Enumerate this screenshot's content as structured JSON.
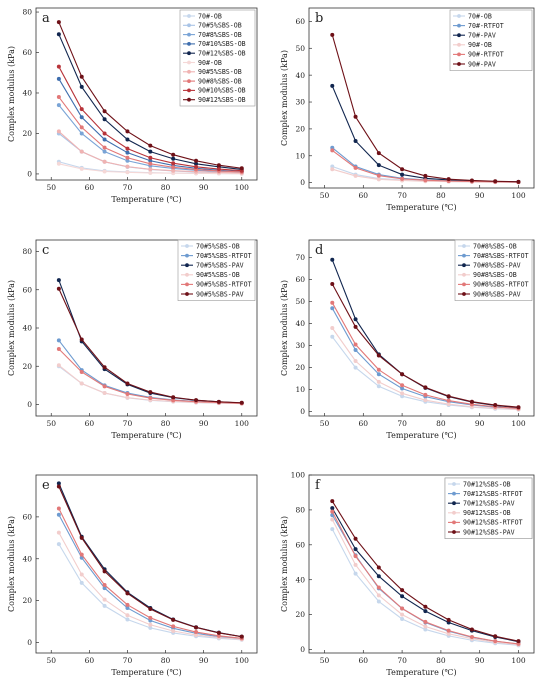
{
  "colors": {
    "A": "#c6d7ec",
    "B": "#6e9bd0",
    "C": "#11264f",
    "D": "#f2cdcc",
    "E": "#e27878",
    "F": "#6e1017",
    "a1": "#c6d7ec",
    "a2": "#a9c4e6",
    "a3": "#7aa4d6",
    "a4": "#3f6eae",
    "a5": "#11264f",
    "a6": "#f5d8d7",
    "a7": "#f0b3b2",
    "a8": "#e27878",
    "a9": "#b8343a",
    "a10": "#6e1017"
  },
  "chart_data": [
    {
      "type": "line",
      "panel": "a",
      "xlabel": "Temperature (℃)",
      "ylabel": "Complex modulus (kPa)",
      "xlim": [
        46,
        104
      ],
      "ylim": [
        -3,
        82
      ],
      "xticks": [
        50,
        60,
        70,
        80,
        90,
        100
      ],
      "yticks": [
        0,
        20,
        40,
        60,
        80
      ],
      "x": [
        52,
        58,
        64,
        70,
        76,
        82,
        88,
        94,
        100
      ],
      "series": [
        {
          "name": "70#-OB",
          "color": "a1",
          "values": [
            6,
            3,
            1.5,
            1,
            0.6,
            0.4,
            0.3,
            0.2,
            0.1
          ]
        },
        {
          "name": "70#5%SBS-OB",
          "color": "a2",
          "values": [
            20,
            11,
            6,
            3.5,
            2.2,
            1.5,
            1,
            0.7,
            0.5
          ]
        },
        {
          "name": "70#8%SBS-OB",
          "color": "a3",
          "values": [
            34,
            20,
            11,
            6.5,
            4,
            2.7,
            1.8,
            1.2,
            0.8
          ]
        },
        {
          "name": "70#10%SBS-OB",
          "color": "a4",
          "values": [
            47,
            28,
            17,
            10.5,
            6.5,
            4.2,
            2.8,
            1.8,
            1.2
          ]
        },
        {
          "name": "70#12%SBS-OB",
          "color": "a5",
          "values": [
            69,
            43,
            27,
            17,
            11,
            7.5,
            5,
            3.5,
            2.2
          ]
        },
        {
          "name": "90#-OB",
          "color": "a6",
          "values": [
            5,
            2.5,
            1.2,
            0.8,
            0.5,
            0.4,
            0.3,
            0.2,
            0.1
          ]
        },
        {
          "name": "90#5%SBS-OB",
          "color": "a7",
          "values": [
            21,
            11,
            6,
            3.6,
            2.3,
            1.6,
            1.1,
            0.8,
            0.5
          ]
        },
        {
          "name": "90#8%SBS-OB",
          "color": "a8",
          "values": [
            38,
            23,
            13,
            8,
            5,
            3.3,
            2.2,
            1.5,
            1
          ]
        },
        {
          "name": "90#10%SBS-OB",
          "color": "a9",
          "values": [
            53,
            32,
            20,
            12.5,
            8,
            5.3,
            3.5,
            2.4,
            1.6
          ]
        },
        {
          "name": "90#12%SBS-OB",
          "color": "a10",
          "values": [
            75,
            48,
            31,
            21,
            14,
            9.5,
            6.5,
            4.3,
            2.8
          ]
        }
      ]
    },
    {
      "type": "line",
      "panel": "b",
      "xlabel": "Temperature (℃)",
      "ylabel": "Complex modulus (kPa)",
      "xlim": [
        46,
        104
      ],
      "ylim": [
        -2,
        65
      ],
      "xticks": [
        50,
        60,
        70,
        80,
        90,
        100
      ],
      "yticks": [
        0,
        10,
        20,
        30,
        40,
        50,
        60
      ],
      "x": [
        52,
        58,
        64,
        70,
        76,
        82,
        88,
        94,
        100
      ],
      "series": [
        {
          "name": "70#-OB",
          "color": "A",
          "values": [
            6,
            3,
            1.5,
            1,
            0.6,
            0.4,
            0.3,
            0.2,
            0.1
          ]
        },
        {
          "name": "70#-RTFOT",
          "color": "B",
          "values": [
            13,
            6,
            3,
            1.6,
            1,
            0.6,
            0.4,
            0.3,
            0.2
          ]
        },
        {
          "name": "70#-PAV",
          "color": "C",
          "values": [
            36,
            15.5,
            6.5,
            3,
            1.6,
            1,
            0.6,
            0.4,
            0.3
          ]
        },
        {
          "name": "90#-OB",
          "color": "D",
          "values": [
            5,
            2.5,
            1.2,
            0.8,
            0.5,
            0.4,
            0.3,
            0.2,
            0.1
          ]
        },
        {
          "name": "90#-RTFOT",
          "color": "E",
          "values": [
            12,
            5.5,
            2.6,
            1.4,
            0.9,
            0.6,
            0.4,
            0.3,
            0.2
          ]
        },
        {
          "name": "90#-PAV",
          "color": "F",
          "values": [
            55,
            24.5,
            11,
            5,
            2.5,
            1.3,
            0.8,
            0.5,
            0.3
          ]
        }
      ]
    },
    {
      "type": "line",
      "panel": "c",
      "xlabel": "Temperature (℃)",
      "ylabel": "Complex modulus (kPa)",
      "xlim": [
        46,
        104
      ],
      "ylim": [
        -6,
        86
      ],
      "xticks": [
        50,
        60,
        70,
        80,
        90,
        100
      ],
      "yticks": [
        0,
        20,
        40,
        60,
        80
      ],
      "x": [
        52,
        58,
        64,
        70,
        76,
        82,
        88,
        94,
        100
      ],
      "series": [
        {
          "name": "70#5%SBS-OB",
          "color": "A",
          "values": [
            20,
            11,
            6,
            3.5,
            2.2,
            1.5,
            1,
            0.7,
            0.5
          ]
        },
        {
          "name": "70#5%SBS-RTFOT",
          "color": "B",
          "values": [
            33.5,
            18,
            10,
            6,
            3.7,
            2.4,
            1.6,
            1.1,
            0.7
          ]
        },
        {
          "name": "70#5%SBS-PAV",
          "color": "C",
          "values": [
            65,
            33,
            18.5,
            10.5,
            6,
            3.6,
            2.2,
            1.4,
            0.8
          ]
        },
        {
          "name": "90#5%SBS-OB",
          "color": "D",
          "values": [
            20.5,
            11,
            6,
            3.6,
            2.3,
            1.6,
            1.1,
            0.8,
            0.5
          ]
        },
        {
          "name": "90#5%SBS-RTFOT",
          "color": "E",
          "values": [
            29,
            17,
            9.5,
            5.5,
            3.4,
            2.2,
            1.5,
            1,
            0.6
          ]
        },
        {
          "name": "90#5%SBS-PAV",
          "color": "F",
          "values": [
            60.5,
            34,
            19.5,
            11,
            6.5,
            3.8,
            2.3,
            1.4,
            0.9
          ]
        }
      ]
    },
    {
      "type": "line",
      "panel": "d",
      "xlabel": "Temperature (℃)",
      "ylabel": "Complex modulus (kPa)",
      "xlim": [
        46,
        104
      ],
      "ylim": [
        -2,
        78
      ],
      "xticks": [
        50,
        60,
        70,
        80,
        90,
        100
      ],
      "yticks": [
        0,
        10,
        20,
        30,
        40,
        50,
        60,
        70
      ],
      "x": [
        52,
        58,
        64,
        70,
        76,
        82,
        88,
        94,
        100
      ],
      "series": [
        {
          "name": "70#8%SBS-OB",
          "color": "A",
          "values": [
            34,
            20,
            11.5,
            7,
            4.5,
            3,
            2,
            1.3,
            0.9
          ]
        },
        {
          "name": "70#8%SBS-RTFOT",
          "color": "B",
          "values": [
            47,
            28,
            17,
            10.5,
            6.8,
            4.5,
            3,
            2,
            1.3
          ]
        },
        {
          "name": "70#8%SBS-PAV",
          "color": "C",
          "values": [
            69,
            42,
            26,
            17,
            10.8,
            6.8,
            4.3,
            2.8,
            1.7
          ]
        },
        {
          "name": "90#8%SBS-OB",
          "color": "D",
          "values": [
            38,
            23,
            13.5,
            8.3,
            5.2,
            3.4,
            2.2,
            1.5,
            1
          ]
        },
        {
          "name": "90#8%SBS-RTFOT",
          "color": "E",
          "values": [
            49.5,
            30.5,
            19,
            12,
            7.6,
            5,
            3.3,
            2.2,
            1.4
          ]
        },
        {
          "name": "90#8%SBS-PAV",
          "color": "F",
          "values": [
            58,
            38.5,
            25.5,
            17,
            11,
            7,
            4.5,
            3,
            2
          ]
        }
      ]
    },
    {
      "type": "line",
      "panel": "e",
      "xlabel": "Temperature (℃)",
      "ylabel": "Complex modulus (kPa)",
      "xlim": [
        46,
        104
      ],
      "ylim": [
        -5,
        80
      ],
      "xticks": [
        50,
        60,
        70,
        80,
        90,
        100
      ],
      "yticks": [
        0,
        20,
        40,
        60
      ],
      "x": [
        52,
        58,
        64,
        70,
        76,
        82,
        88,
        94,
        100
      ],
      "series": [
        {
          "name": "70#10%SBS-OB",
          "color": "A",
          "values": [
            47,
            28.5,
            17.5,
            11,
            7,
            4.6,
            3,
            2,
            1.3
          ]
        },
        {
          "name": "70#10%SBS-RTFOT",
          "color": "B",
          "values": [
            61,
            40.5,
            26,
            16.5,
            10.5,
            6.8,
            4.4,
            2.8,
            1.8
          ]
        },
        {
          "name": "70#10%SBS-PAV",
          "color": "C",
          "values": [
            76,
            50.5,
            35,
            24,
            16.5,
            11,
            7.3,
            4.7,
            2.8
          ]
        },
        {
          "name": "90#10%SBS-OB",
          "color": "D",
          "values": [
            52.5,
            32.5,
            20.5,
            13,
            8.5,
            5.5,
            3.6,
            2.4,
            1.5
          ]
        },
        {
          "name": "90#10%SBS-RTFOT",
          "color": "E",
          "values": [
            64,
            42,
            27.5,
            18,
            11.8,
            7.7,
            5,
            3.2,
            2
          ]
        },
        {
          "name": "90#10%SBS-PAV",
          "color": "F",
          "values": [
            74.5,
            50,
            34,
            23.5,
            16,
            10.8,
            7.2,
            4.6,
            2.8
          ]
        }
      ]
    },
    {
      "type": "line",
      "panel": "f",
      "xlabel": "Temperature (℃)",
      "ylabel": "Complex modulus (kPa)",
      "xlim": [
        46,
        104
      ],
      "ylim": [
        -2,
        100
      ],
      "xticks": [
        50,
        60,
        70,
        80,
        90,
        100
      ],
      "yticks": [
        0,
        20,
        40,
        60,
        80,
        100
      ],
      "x": [
        52,
        58,
        64,
        70,
        76,
        82,
        88,
        94,
        100
      ],
      "series": [
        {
          "name": "70#12%SBS-OB",
          "color": "A",
          "values": [
            69,
            43.5,
            27.5,
            17.5,
            11.5,
            7.8,
            5.3,
            3.6,
            2.4
          ]
        },
        {
          "name": "70#12%SBS-RTFOT",
          "color": "B",
          "values": [
            77,
            54,
            35,
            23.5,
            15.5,
            10.5,
            7,
            4.7,
            3.1
          ]
        },
        {
          "name": "70#12%SBS-PAV",
          "color": "C",
          "values": [
            81,
            57.5,
            42,
            30.5,
            22,
            15.5,
            10.8,
            7.2,
            4.5
          ]
        },
        {
          "name": "90#12%SBS-OB",
          "color": "D",
          "values": [
            74.5,
            48.5,
            31,
            20,
            13.2,
            9,
            6.2,
            4.2,
            2.8
          ]
        },
        {
          "name": "90#12%SBS-RTFOT",
          "color": "E",
          "values": [
            79,
            53.5,
            35.5,
            23.5,
            15.8,
            10.8,
            7.2,
            4.8,
            3.2
          ]
        },
        {
          "name": "90#12%SBS-PAV",
          "color": "F",
          "values": [
            85,
            63.5,
            47,
            34,
            24.5,
            17,
            11.5,
            7.6,
            4.8
          ]
        }
      ]
    }
  ]
}
